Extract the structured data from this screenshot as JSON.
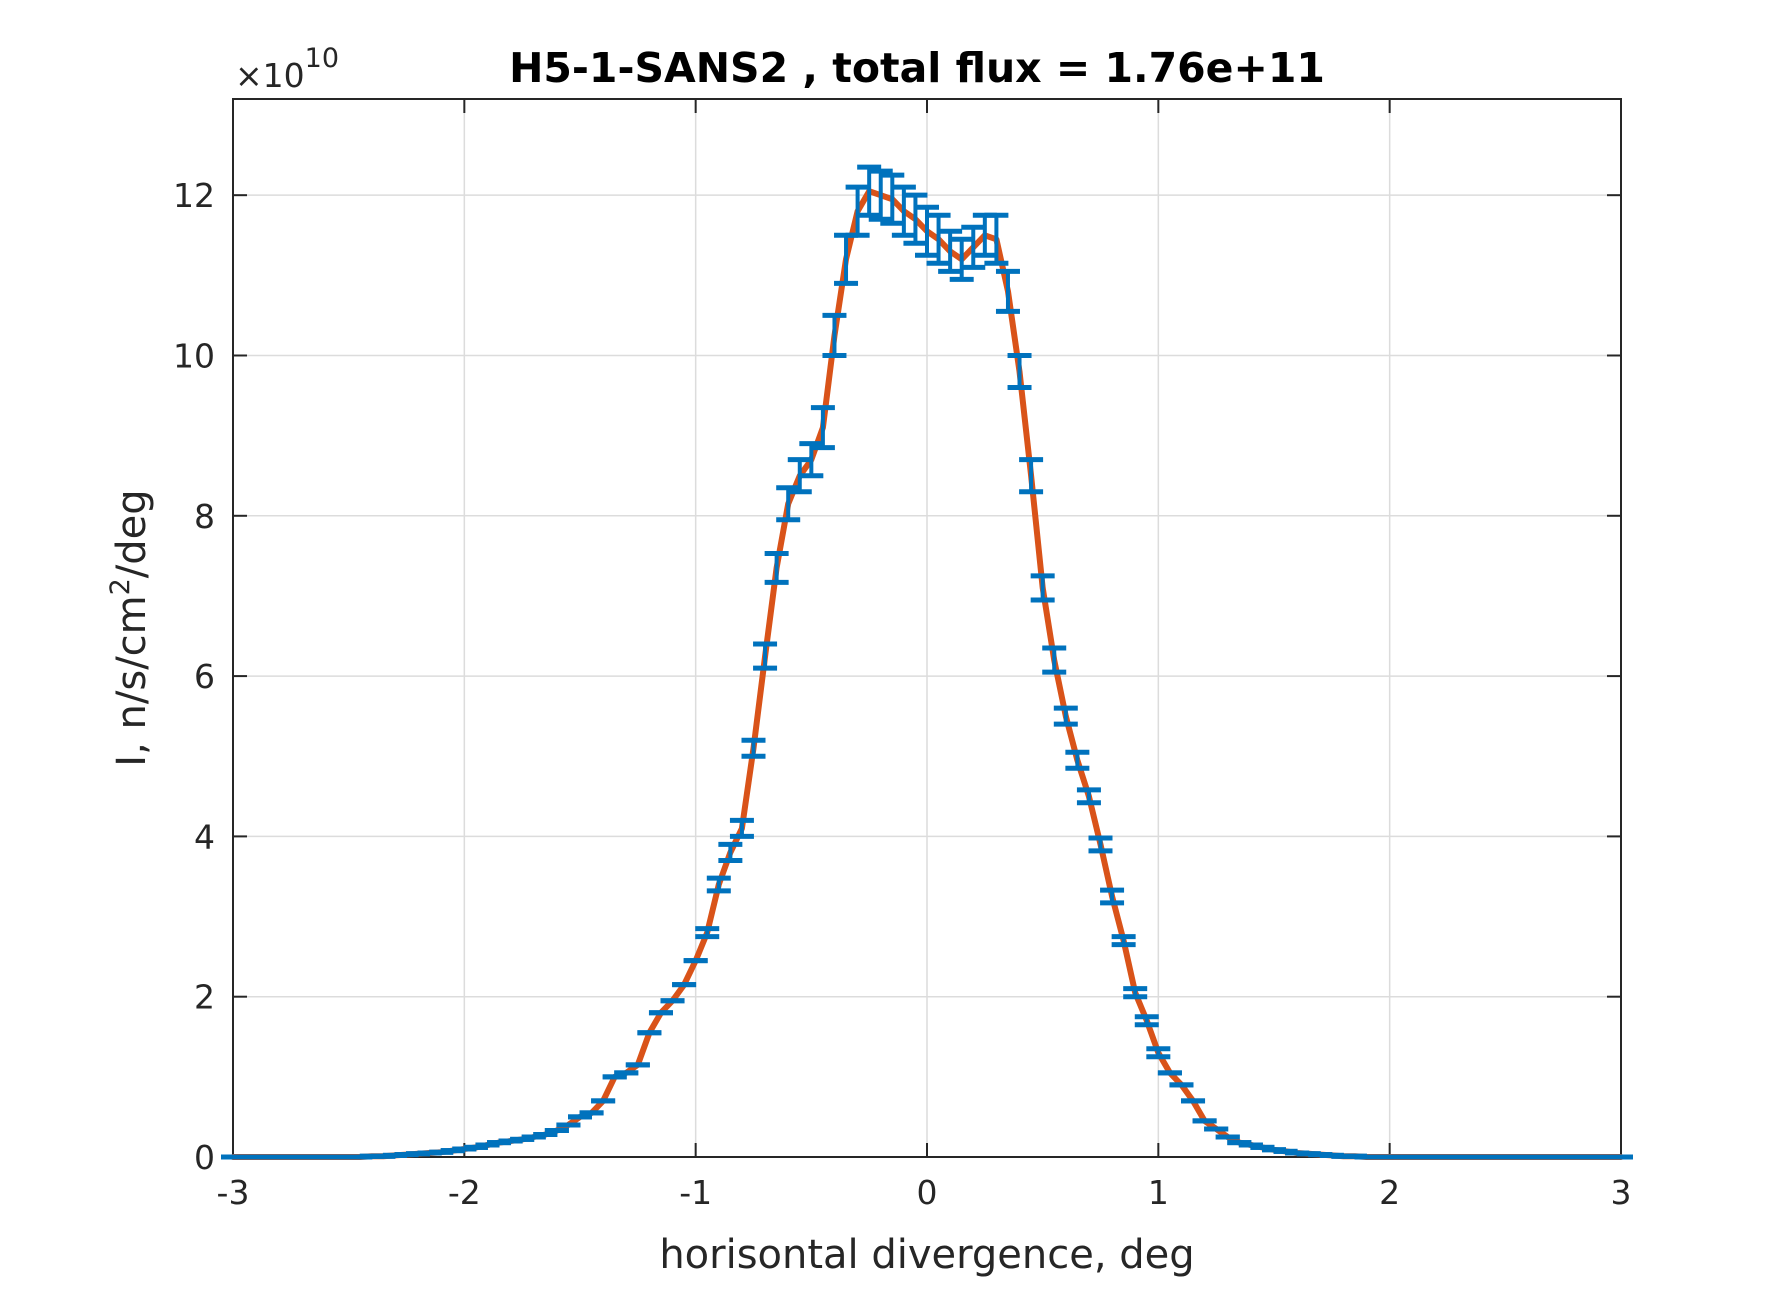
{
  "chart_data": {
    "type": "line",
    "title": "H5-1-SANS2 , total flux =  1.76e+11",
    "xlabel": "horisontal divergence, deg",
    "ylabel_main": "I, n/s/cm",
    "ylabel_sup": "2",
    "ylabel_tail": "/deg",
    "exponent_base": "×10",
    "exponent_power": "10",
    "xlim": [
      -3,
      3
    ],
    "ylim": [
      0,
      13.2
    ],
    "y_scale_factor": 10000000000.0,
    "xticks": [
      -3,
      -2,
      -1,
      0,
      1,
      2,
      3
    ],
    "xtick_labels": [
      "-3",
      "-2",
      "-1",
      "0",
      "1",
      "2",
      "3"
    ],
    "yticks": [
      0,
      2,
      4,
      6,
      8,
      10,
      12
    ],
    "ytick_labels": [
      "0",
      "2",
      "4",
      "6",
      "8",
      "10",
      "12"
    ],
    "grid": true,
    "legend": "none",
    "colors": {
      "fit_line": "#D95319",
      "data": "#0072BD",
      "axes": "#262626",
      "grid": "#DCDCDC"
    },
    "x": [
      -3.0,
      -2.95,
      -2.9,
      -2.85,
      -2.8,
      -2.75,
      -2.7,
      -2.65,
      -2.6,
      -2.55,
      -2.5,
      -2.45,
      -2.4,
      -2.35,
      -2.3,
      -2.25,
      -2.2,
      -2.15,
      -2.1,
      -2.05,
      -2.0,
      -1.95,
      -1.9,
      -1.85,
      -1.8,
      -1.75,
      -1.7,
      -1.65,
      -1.6,
      -1.55,
      -1.5,
      -1.45,
      -1.4,
      -1.35,
      -1.3,
      -1.25,
      -1.2,
      -1.15,
      -1.1,
      -1.05,
      -1.0,
      -0.95,
      -0.9,
      -0.85,
      -0.8,
      -0.75,
      -0.7,
      -0.65,
      -0.6,
      -0.55,
      -0.5,
      -0.45,
      -0.4,
      -0.35,
      -0.3,
      -0.25,
      -0.2,
      -0.15,
      -0.1,
      -0.05,
      0.0,
      0.05,
      0.1,
      0.15,
      0.2,
      0.25,
      0.3,
      0.35,
      0.4,
      0.45,
      0.5,
      0.55,
      0.6,
      0.65,
      0.7,
      0.75,
      0.8,
      0.85,
      0.9,
      0.95,
      1.0,
      1.05,
      1.1,
      1.15,
      1.2,
      1.25,
      1.3,
      1.35,
      1.4,
      1.45,
      1.5,
      1.55,
      1.6,
      1.65,
      1.7,
      1.75,
      1.8,
      1.85,
      1.9,
      1.95,
      2.0,
      2.05,
      2.1,
      2.15,
      2.2,
      2.25,
      2.3,
      2.35,
      2.4,
      2.45,
      2.5,
      2.55,
      2.6,
      2.65,
      2.7,
      2.75,
      2.8,
      2.85,
      2.9,
      2.95,
      3.0
    ],
    "y": [
      0.0,
      0.0,
      0.0,
      0.0,
      0.0,
      0.0,
      0.0,
      0.0,
      0.0,
      0.0,
      0.0,
      0.0,
      0.01,
      0.01,
      0.02,
      0.03,
      0.04,
      0.05,
      0.06,
      0.08,
      0.1,
      0.12,
      0.15,
      0.18,
      0.2,
      0.22,
      0.25,
      0.28,
      0.33,
      0.4,
      0.5,
      0.55,
      0.7,
      1.0,
      1.05,
      1.15,
      1.55,
      1.8,
      1.95,
      2.15,
      2.45,
      2.8,
      3.4,
      3.8,
      4.1,
      5.1,
      6.25,
      7.35,
      8.15,
      8.5,
      8.7,
      9.1,
      10.25,
      11.2,
      11.8,
      12.05,
      12.0,
      11.95,
      11.8,
      11.7,
      11.55,
      11.45,
      11.3,
      11.2,
      11.35,
      11.5,
      11.45,
      10.8,
      9.8,
      8.5,
      7.1,
      6.2,
      5.5,
      4.95,
      4.5,
      3.9,
      3.25,
      2.7,
      2.05,
      1.7,
      1.3,
      1.05,
      0.9,
      0.7,
      0.45,
      0.35,
      0.25,
      0.18,
      0.15,
      0.12,
      0.09,
      0.07,
      0.05,
      0.04,
      0.03,
      0.02,
      0.01,
      0.01,
      0.0,
      0.0,
      0.0,
      0.0,
      0.0,
      0.0,
      0.0,
      0.0,
      0.0,
      0.0,
      0.0,
      0.0,
      0.0,
      0.0,
      0.0,
      0.0,
      0.0,
      0.0,
      0.0,
      0.0,
      0.0,
      0.0,
      0.0
    ],
    "error": [
      0.0,
      0.0,
      0.0,
      0.0,
      0.0,
      0.0,
      0.0,
      0.0,
      0.0,
      0.0,
      0.0,
      0.0,
      0.0,
      0.0,
      0.0,
      0.0,
      0.0,
      0.0,
      0.0,
      0.0,
      0.0,
      0.0,
      0.0,
      0.0,
      0.0,
      0.0,
      0.0,
      0.0,
      0.0,
      0.0,
      0.0,
      0.0,
      0.0,
      0.0,
      0.0,
      0.0,
      0.0,
      0.0,
      0.0,
      0.0,
      0.0,
      0.05,
      0.08,
      0.1,
      0.1,
      0.1,
      0.15,
      0.18,
      0.2,
      0.2,
      0.2,
      0.25,
      0.25,
      0.3,
      0.3,
      0.3,
      0.3,
      0.3,
      0.3,
      0.3,
      0.3,
      0.3,
      0.25,
      0.25,
      0.25,
      0.25,
      0.3,
      0.25,
      0.2,
      0.2,
      0.15,
      0.15,
      0.1,
      0.1,
      0.08,
      0.08,
      0.08,
      0.05,
      0.05,
      0.05,
      0.05,
      0.0,
      0.0,
      0.0,
      0.0,
      0.0,
      0.0,
      0.0,
      0.0,
      0.0,
      0.0,
      0.0,
      0.0,
      0.0,
      0.0,
      0.0,
      0.0,
      0.0,
      0.0,
      0.0,
      0.0,
      0.0,
      0.0,
      0.0,
      0.0,
      0.0,
      0.0,
      0.0,
      0.0,
      0.0,
      0.0,
      0.0,
      0.0,
      0.0,
      0.0,
      0.0,
      0.0,
      0.0,
      0.0,
      0.0,
      0.0
    ]
  }
}
